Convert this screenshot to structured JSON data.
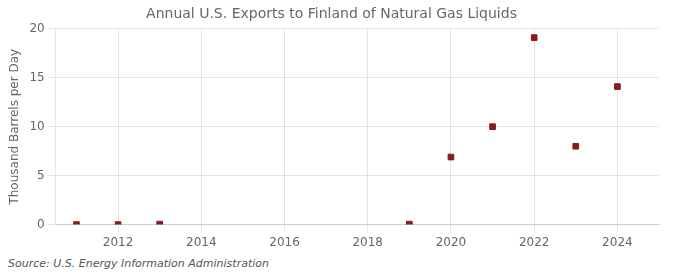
{
  "chart_data": {
    "type": "scatter",
    "title": "Annual U.S. Exports to Finland of Natural Gas Liquids",
    "ylabel": "Thousand Barrels per Day",
    "annotation": "Source: U.S. Energy Information Administration",
    "x": [
      2011,
      2012,
      2013,
      2019,
      2020,
      2021,
      2022,
      2023,
      2024
    ],
    "values": [
      0.0,
      0.0,
      0.05,
      0.05,
      6.9,
      10.0,
      19.1,
      8.0,
      14.1
    ],
    "color": "#8b1a1a",
    "marker": "square",
    "xlim": [
      2010.5,
      2025
    ],
    "ylim": [
      0,
      20
    ],
    "xticks": [
      2012,
      2014,
      2016,
      2018,
      2020,
      2022,
      2024
    ],
    "yticks": [
      0,
      5,
      10,
      15,
      20
    ],
    "grid": true
  }
}
